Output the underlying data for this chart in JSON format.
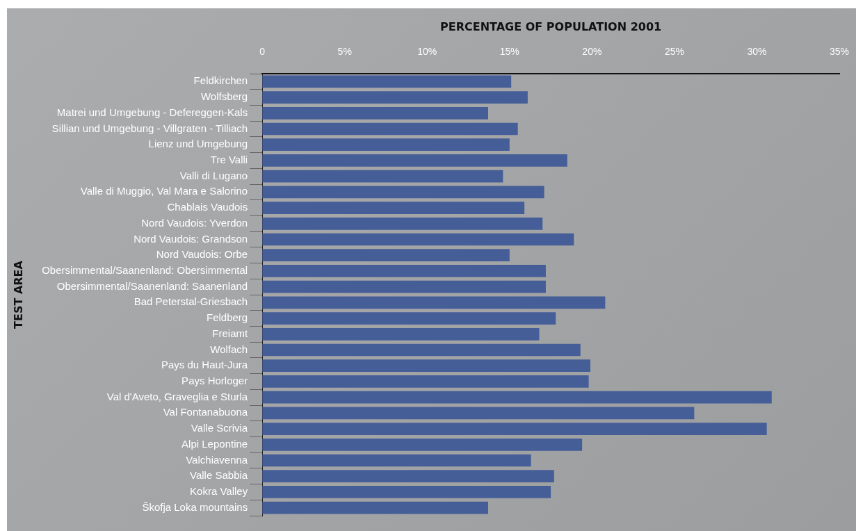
{
  "chart_data": {
    "type": "bar",
    "orientation": "horizontal",
    "xlabel": "PERCENTAGE OF POPULATION 2001",
    "ylabel": "TEST AREA",
    "categories": [
      "Feldkirchen",
      "Wolfsberg",
      "Matrei und Umgebung - Defereggen-Kals",
      "Sillian und Umgebung - Villgraten - Tilliach",
      "Lienz und Umgebung",
      "Tre Valli",
      "Valli di Lugano",
      "Valle di Muggio, Val Mara e Salorino",
      "Chablais Vaudois",
      "Nord Vaudois: Yverdon",
      "Nord Vaudois: Grandson",
      "Nord Vaudois: Orbe",
      "Obersimmental/Saanenland: Obersimmental",
      "Obersimmental/Saanenland: Saanenland",
      "Bad Peterstal-Griesbach",
      "Feldberg",
      "Freiamt",
      "Wolfach",
      "Pays du Haut-Jura",
      "Pays Horloger",
      "Val d'Aveto, Graveglia e Sturla",
      "Val Fontanabuona",
      "Valle Scrivia",
      "Alpi Lepontine",
      "Valchiavenna",
      "Valle Sabbia",
      "Kokra Valley",
      "Škofja Loka mountains"
    ],
    "values": [
      15.1,
      16.1,
      13.7,
      15.5,
      15.0,
      18.5,
      14.6,
      17.1,
      15.9,
      17.0,
      18.9,
      15.0,
      17.2,
      17.2,
      20.8,
      17.8,
      16.8,
      19.3,
      19.9,
      19.8,
      30.9,
      26.2,
      30.6,
      19.4,
      16.3,
      17.7,
      17.5,
      13.7
    ],
    "color": "#465e98",
    "xlim": [
      0,
      35
    ],
    "xticks": [
      0,
      {
        "value": 5,
        "label": "5%"
      },
      {
        "value": 10,
        "label": "10%"
      },
      {
        "value": 15,
        "label": "15%"
      },
      {
        "value": 20,
        "label": "20%"
      },
      {
        "value": 25,
        "label": "25%"
      },
      {
        "value": 30,
        "label": "30%"
      },
      {
        "value": 35,
        "label": "35%"
      }
    ],
    "grid": false,
    "legend": false
  }
}
